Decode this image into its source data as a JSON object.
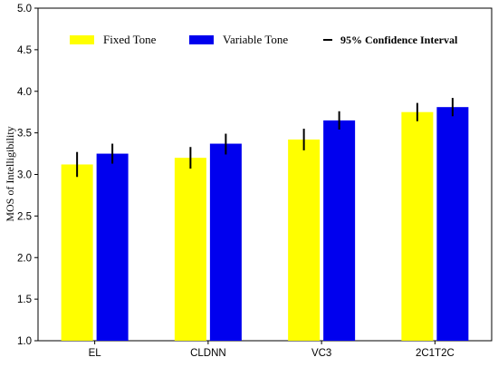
{
  "chart_data": {
    "type": "bar",
    "title": "",
    "xlabel": "",
    "ylabel": "MOS of Intelligibility",
    "ylim": [
      1.0,
      5.0
    ],
    "yticks": [
      "1.0",
      "1.5",
      "2.0",
      "2.5",
      "3.0",
      "3.5",
      "4.0",
      "4.5",
      "5.0"
    ],
    "categories": [
      "EL",
      "CLDNN",
      "VC3",
      "2C1T2C"
    ],
    "series": [
      {
        "name": "Fixed Tone",
        "color": "#ffff00",
        "values": [
          3.12,
          3.2,
          3.42,
          3.75
        ],
        "ci": [
          [
            2.97,
            3.27
          ],
          [
            3.07,
            3.33
          ],
          [
            3.29,
            3.55
          ],
          [
            3.64,
            3.86
          ]
        ]
      },
      {
        "name": "Variable Tone",
        "color": "#0000ee",
        "values": [
          3.25,
          3.37,
          3.65,
          3.81
        ],
        "ci": [
          [
            3.13,
            3.37
          ],
          [
            3.24,
            3.49
          ],
          [
            3.54,
            3.76
          ],
          [
            3.7,
            3.92
          ]
        ]
      }
    ],
    "legend": {
      "placement": "top",
      "entries": [
        "Fixed Tone",
        "Variable Tone",
        "95% Confidence Interval"
      ]
    },
    "grid": false
  }
}
